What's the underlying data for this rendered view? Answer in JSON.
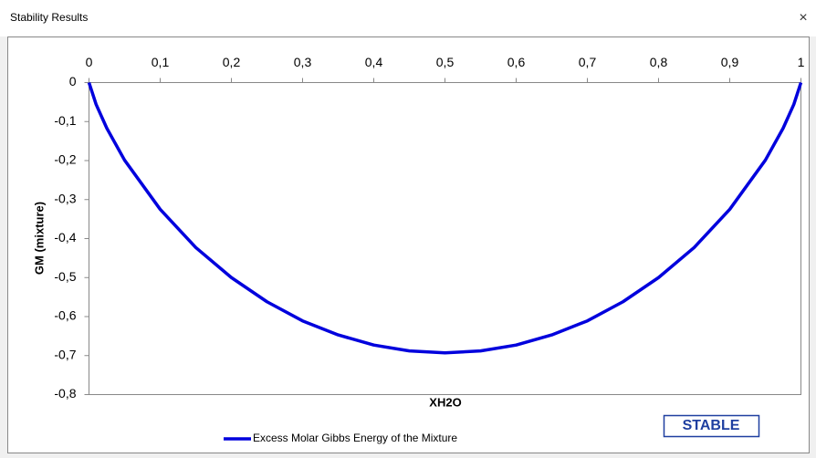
{
  "window": {
    "title": "Stability Results",
    "close": "×"
  },
  "status": "STABLE",
  "chart_data": {
    "type": "line",
    "x_label": "XH2O",
    "y_label": "GM (mixture)",
    "x": [
      0,
      0.01,
      0.025,
      0.05,
      0.1,
      0.15,
      0.2,
      0.25,
      0.3,
      0.35,
      0.4,
      0.45,
      0.5,
      0.55,
      0.6,
      0.65,
      0.7,
      0.75,
      0.8,
      0.85,
      0.9,
      0.95,
      0.975,
      0.99,
      1
    ],
    "series": [
      {
        "name": "Excess Molar Gibbs Energy of the Mixture",
        "color": "#0000dd",
        "values": [
          0,
          -0.056,
          -0.117,
          -0.199,
          -0.325,
          -0.423,
          -0.5,
          -0.562,
          -0.611,
          -0.647,
          -0.673,
          -0.688,
          -0.693,
          -0.688,
          -0.673,
          -0.647,
          -0.611,
          -0.562,
          -0.5,
          -0.423,
          -0.325,
          -0.199,
          -0.117,
          -0.056,
          0
        ]
      }
    ],
    "xlim": [
      0,
      1
    ],
    "ylim": [
      -0.8,
      0
    ],
    "xticks": [
      0,
      {
        "value": 0.1,
        "label": "0,1"
      },
      {
        "value": 0.2,
        "label": "0,2"
      },
      {
        "value": 0.3,
        "label": "0,3"
      },
      {
        "value": 0.4,
        "label": "0,4"
      },
      {
        "value": 0.5,
        "label": "0,5"
      },
      {
        "value": 0.6,
        "label": "0,6"
      },
      {
        "value": 0.7,
        "label": "0,7"
      },
      {
        "value": 0.8,
        "label": "0,8"
      },
      {
        "value": 0.9,
        "label": "0,9"
      },
      1
    ],
    "yticks": [
      0,
      {
        "value": -0.1,
        "label": "-0,1"
      },
      {
        "value": -0.2,
        "label": "-0,2"
      },
      {
        "value": -0.3,
        "label": "-0,3"
      },
      {
        "value": -0.4,
        "label": "-0,4"
      },
      {
        "value": -0.5,
        "label": "-0,5"
      },
      {
        "value": -0.6,
        "label": "-0,6"
      },
      {
        "value": -0.7,
        "label": "-0,7"
      },
      {
        "value": -0.8,
        "label": "-0,8"
      }
    ],
    "x_axis_position": "top",
    "grid": false,
    "legend": "bottom"
  }
}
